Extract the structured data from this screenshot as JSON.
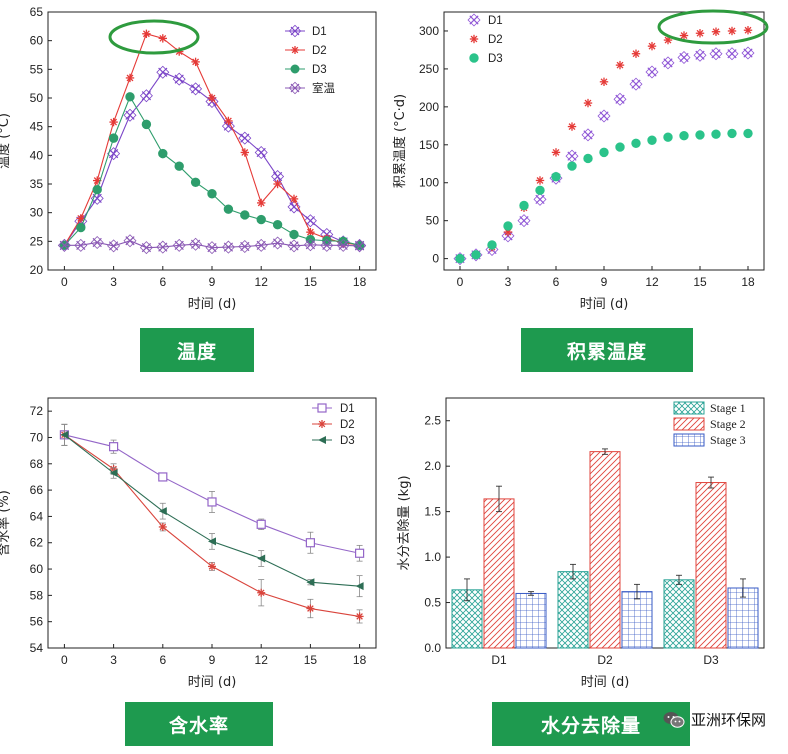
{
  "captions": [
    "温度",
    "积累温度",
    "含水率",
    "水分去除量"
  ],
  "watermark": {
    "text": "亚洲环保网",
    "icon": "wechat-icon"
  },
  "chart_data": [
    {
      "type": "line",
      "xlabel": "时间 (d)",
      "ylabel": "温度 (°C)",
      "xlim": [
        -1,
        19
      ],
      "ylim": [
        20,
        65
      ],
      "xticks": [
        0,
        3,
        6,
        9,
        12,
        15,
        18
      ],
      "yticks": [
        20,
        25,
        30,
        35,
        40,
        45,
        50,
        55,
        60,
        65
      ],
      "legend_position": "top-right",
      "x": [
        0,
        1,
        2,
        3,
        4,
        5,
        6,
        7,
        8,
        9,
        10,
        11,
        12,
        13,
        14,
        15,
        16,
        17,
        18
      ],
      "series": [
        {
          "name": "D1",
          "color": "#7b45c8",
          "marker": "x-cross",
          "values": [
            24.3,
            28.5,
            32.5,
            40.3,
            47.0,
            50.4,
            54.5,
            53.3,
            51.6,
            49.4,
            45.1,
            43.0,
            40.5,
            36.3,
            31.0,
            28.6,
            26.2,
            24.9,
            24.3
          ]
        },
        {
          "name": "D2",
          "color": "#e53a37",
          "marker": "star",
          "values": [
            24.3,
            29.0,
            35.6,
            45.8,
            53.5,
            61.2,
            60.4,
            58.1,
            56.3,
            50.0,
            46.0,
            40.5,
            31.7,
            35.0,
            32.4,
            26.6,
            25.5,
            24.7,
            24.4
          ]
        },
        {
          "name": "D3",
          "color": "#2e9d6c",
          "marker": "dot",
          "values": [
            24.3,
            27.4,
            34.0,
            43.0,
            50.2,
            45.4,
            40.3,
            38.1,
            35.3,
            33.3,
            30.6,
            29.6,
            28.8,
            27.9,
            26.2,
            25.3,
            25.1,
            25.0,
            24.3
          ]
        },
        {
          "name": "室温",
          "color": "#8a58b4",
          "marker": "x-cross",
          "values": [
            24.3,
            24.3,
            24.8,
            24.2,
            25.1,
            23.9,
            24.0,
            24.3,
            24.5,
            23.9,
            24.0,
            24.1,
            24.3,
            24.7,
            24.2,
            24.4,
            24.3,
            24.3,
            24.2
          ]
        }
      ]
    },
    {
      "type": "scatter",
      "xlabel": "时间 (d)",
      "ylabel": "积累温度 (°C·d)",
      "xlim": [
        -1,
        19
      ],
      "ylim": [
        -15,
        325
      ],
      "xticks": [
        0,
        3,
        6,
        9,
        12,
        15,
        18
      ],
      "yticks": [
        0,
        50,
        100,
        150,
        200,
        250,
        300
      ],
      "legend_position": "top-left",
      "x": [
        0,
        1,
        2,
        3,
        4,
        5,
        6,
        7,
        8,
        9,
        10,
        11,
        12,
        13,
        14,
        15,
        16,
        17,
        18
      ],
      "series": [
        {
          "name": "D1",
          "color": "#8f56d6",
          "marker": "x-cross",
          "values": [
            0,
            5,
            12,
            30,
            50,
            78,
            106,
            135,
            163,
            188,
            210,
            230,
            246,
            258,
            265,
            268,
            270,
            270,
            271
          ]
        },
        {
          "name": "D2",
          "color": "#e53a37",
          "marker": "star",
          "values": [
            0,
            5,
            15,
            35,
            67,
            103,
            140,
            174,
            205,
            233,
            255,
            270,
            280,
            288,
            294,
            297,
            299,
            300,
            301
          ]
        },
        {
          "name": "D3",
          "color": "#2bc38a",
          "marker": "dot",
          "values": [
            0,
            5,
            18,
            43,
            70,
            90,
            108,
            122,
            132,
            140,
            147,
            152,
            156,
            160,
            162,
            163,
            164,
            165,
            165
          ]
        }
      ]
    },
    {
      "type": "line",
      "xlabel": "时间 (d)",
      "ylabel": "含水率 (%)",
      "xlim": [
        -1,
        19
      ],
      "ylim": [
        54,
        73
      ],
      "xticks": [
        0,
        3,
        6,
        9,
        12,
        15,
        18
      ],
      "yticks": [
        54,
        56,
        58,
        60,
        62,
        64,
        66,
        68,
        70,
        72
      ],
      "legend_position": "top-right",
      "x": [
        0,
        3,
        6,
        9,
        12,
        15,
        18
      ],
      "series": [
        {
          "name": "D1",
          "color": "#9466c8",
          "marker": "square",
          "values": [
            70.2,
            69.3,
            67.0,
            65.1,
            63.4,
            62.0,
            61.2
          ],
          "errors": [
            0.8,
            0.5,
            0.3,
            0.8,
            0.4,
            0.8,
            0.6
          ]
        },
        {
          "name": "D2",
          "color": "#d9443c",
          "marker": "star",
          "values": [
            70.2,
            67.6,
            63.2,
            60.2,
            58.2,
            57.0,
            56.4
          ],
          "errors": [
            0.8,
            0.4,
            0.3,
            0.3,
            1.0,
            0.7,
            0.5
          ]
        },
        {
          "name": "D3",
          "color": "#2d6e55",
          "marker": "triangle-left",
          "values": [
            70.2,
            67.3,
            64.4,
            62.1,
            60.8,
            59.0,
            58.7
          ],
          "errors": [
            0.8,
            0.4,
            0.6,
            0.6,
            0.6,
            0.2,
            0.8
          ]
        }
      ]
    },
    {
      "type": "bar",
      "xlabel": "时间 (d)",
      "ylabel": "水分去除量 (kg)",
      "ylim": [
        0,
        2.75
      ],
      "yticks": [
        0.0,
        0.5,
        1.0,
        1.5,
        2.0,
        2.5
      ],
      "categories": [
        "D1",
        "D2",
        "D3"
      ],
      "legend_position": "top-right",
      "series": [
        {
          "name": "Stage 1",
          "color": "#2aa396",
          "pattern": "crosshatch",
          "values": [
            0.64,
            0.84,
            0.75
          ],
          "errors": [
            0.12,
            0.08,
            0.05
          ]
        },
        {
          "name": "Stage 2",
          "color": "#e0443c",
          "pattern": "diagonal",
          "values": [
            1.64,
            2.16,
            1.82
          ],
          "errors": [
            0.14,
            0.03,
            0.06
          ]
        },
        {
          "name": "Stage 3",
          "color": "#3558c4",
          "pattern": "grid",
          "values": [
            0.6,
            0.62,
            0.66
          ],
          "errors": [
            0.02,
            0.08,
            0.1
          ]
        }
      ]
    }
  ],
  "highlight_color": "#2e9b3e",
  "caption_color": "#1e9a4f"
}
